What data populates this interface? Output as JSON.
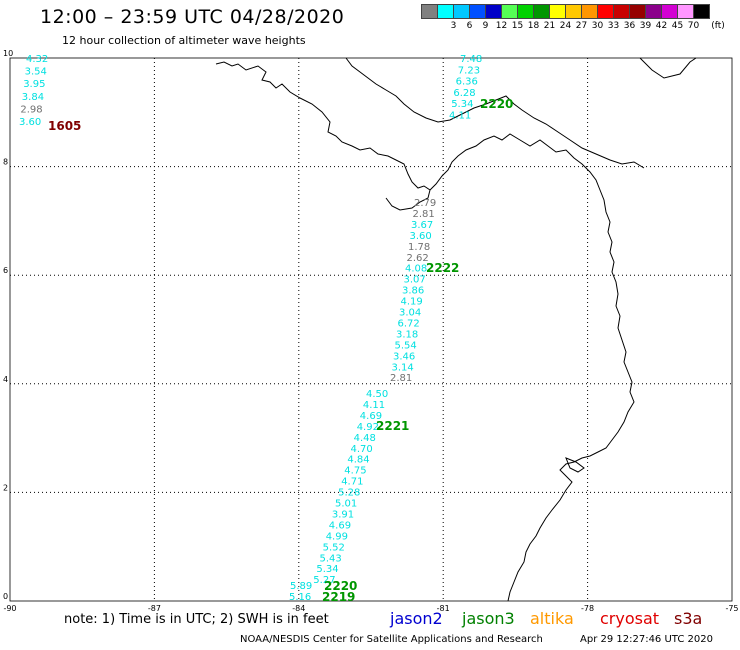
{
  "header": {
    "title": "12:00 – 23:59 UTC 04/28/2020",
    "subtitle": "12 hour collection of altimeter wave heights"
  },
  "color_scale": {
    "unit_label": "(ft)",
    "stops": [
      {
        "label": "",
        "color": "#808080"
      },
      {
        "label": "3",
        "color": "#00ffff"
      },
      {
        "label": "6",
        "color": "#00c8ff"
      },
      {
        "label": "9",
        "color": "#0050ff"
      },
      {
        "label": "12",
        "color": "#0000c8"
      },
      {
        "label": "15",
        "color": "#55ff55"
      },
      {
        "label": "18",
        "color": "#00d200"
      },
      {
        "label": "21",
        "color": "#009600"
      },
      {
        "label": "24",
        "color": "#ffff00"
      },
      {
        "label": "27",
        "color": "#ffc800"
      },
      {
        "label": "30",
        "color": "#ff9600"
      },
      {
        "label": "33",
        "color": "#ff0000"
      },
      {
        "label": "36",
        "color": "#c80000"
      },
      {
        "label": "39",
        "color": "#960000"
      },
      {
        "label": "42",
        "color": "#8b008b"
      },
      {
        "label": "45",
        "color": "#d200d2"
      },
      {
        "label": "70",
        "color": "#ff96ff"
      },
      {
        "label": "",
        "color": "#000000"
      }
    ]
  },
  "axes": {
    "lon_labels": [
      "-90",
      "-87",
      "-84",
      "-81",
      "-78",
      "-75"
    ],
    "lat_labels": [
      "0",
      "2",
      "4",
      "6",
      "8",
      "10"
    ]
  },
  "tracks": [
    {
      "id": "2222-north",
      "label": "2220",
      "label_color": "#009600",
      "obs": [
        {
          "t": "7.48",
          "c": "#00e0e0"
        },
        {
          "t": "7.23",
          "c": "#00e0e0"
        },
        {
          "t": "6.36",
          "c": "#00e0e0"
        },
        {
          "t": "6.28",
          "c": "#00e0e0"
        },
        {
          "t": "5.34",
          "c": "#00e0e0"
        },
        {
          "t": "4.11",
          "c": "#00e0e0"
        }
      ]
    },
    {
      "id": "1605",
      "label": "1605",
      "label_color": "#800000",
      "obs": [
        {
          "t": "4.32",
          "c": "#00e0e0"
        },
        {
          "t": "3.54",
          "c": "#00e0e0"
        },
        {
          "t": "3.95",
          "c": "#00e0e0"
        },
        {
          "t": "3.84",
          "c": "#00e0e0"
        },
        {
          "t": "2.98",
          "c": "#707070"
        },
        {
          "t": "3.60",
          "c": "#00e0e0"
        }
      ]
    },
    {
      "id": "2222",
      "label": "2222",
      "label_color": "#009600",
      "obs": [
        {
          "t": "2.79",
          "c": "#707070"
        },
        {
          "t": "2.81",
          "c": "#707070"
        },
        {
          "t": "3.67",
          "c": "#00e0e0"
        },
        {
          "t": "3.60",
          "c": "#00e0e0"
        },
        {
          "t": "1.78",
          "c": "#707070"
        },
        {
          "t": "2.62",
          "c": "#707070"
        },
        {
          "t": "4.08",
          "c": "#00e0e0"
        },
        {
          "t": "3.07",
          "c": "#00e0e0"
        },
        {
          "t": "3.86",
          "c": "#00e0e0"
        },
        {
          "t": "4.19",
          "c": "#00e0e0"
        },
        {
          "t": "3.04",
          "c": "#00e0e0"
        },
        {
          "t": "6.72",
          "c": "#00e0e0"
        },
        {
          "t": "3.18",
          "c": "#00e0e0"
        },
        {
          "t": "5.54",
          "c": "#00e0e0"
        },
        {
          "t": "3.46",
          "c": "#00e0e0"
        },
        {
          "t": "3.14",
          "c": "#00e0e0"
        },
        {
          "t": "2.81",
          "c": "#707070"
        }
      ]
    },
    {
      "id": "2221",
      "label": "2221",
      "label_color": "#009600",
      "obs": [
        {
          "t": "4.50",
          "c": "#00e0e0"
        },
        {
          "t": "4.11",
          "c": "#00e0e0"
        },
        {
          "t": "4.69",
          "c": "#00e0e0"
        },
        {
          "t": "4.92",
          "c": "#00e0e0"
        },
        {
          "t": "4.48",
          "c": "#00e0e0"
        },
        {
          "t": "4.70",
          "c": "#00e0e0"
        },
        {
          "t": "4.84",
          "c": "#00e0e0"
        },
        {
          "t": "4.75",
          "c": "#00e0e0"
        },
        {
          "t": "4.71",
          "c": "#00e0e0"
        },
        {
          "t": "5.28",
          "c": "#00e0e0"
        },
        {
          "t": "5.01",
          "c": "#00e0e0"
        },
        {
          "t": "3.91",
          "c": "#00e0e0"
        },
        {
          "t": "4.69",
          "c": "#00e0e0"
        },
        {
          "t": "4.99",
          "c": "#00e0e0"
        },
        {
          "t": "5.52",
          "c": "#00e0e0"
        },
        {
          "t": "5.43",
          "c": "#00e0e0"
        },
        {
          "t": "5.34",
          "c": "#00e0e0"
        },
        {
          "t": "5.27",
          "c": "#00e0e0"
        }
      ]
    },
    {
      "id": "2220-2219",
      "label": "2220",
      "label2": "2219",
      "label_color": "#009600",
      "obs": [
        {
          "t": "5.89",
          "c": "#00e0e0"
        },
        {
          "t": "5.16",
          "c": "#00e0e0"
        }
      ]
    }
  ],
  "footer": {
    "note": "note:  1) Time is in UTC; 2) SWH is in feet",
    "satellites": [
      {
        "name": "jason2",
        "color": "#0000d0"
      },
      {
        "name": "jason3",
        "color": "#008000"
      },
      {
        "name": "altika",
        "color": "#ff9900"
      },
      {
        "name": "cryosat",
        "color": "#e00000"
      },
      {
        "name": "s3a",
        "color": "#800000"
      }
    ],
    "credit": "NOAA/NESDIS Center for Satellite Applications and Research",
    "timestamp": "Apr 29 12:27:46 UTC 2020"
  }
}
